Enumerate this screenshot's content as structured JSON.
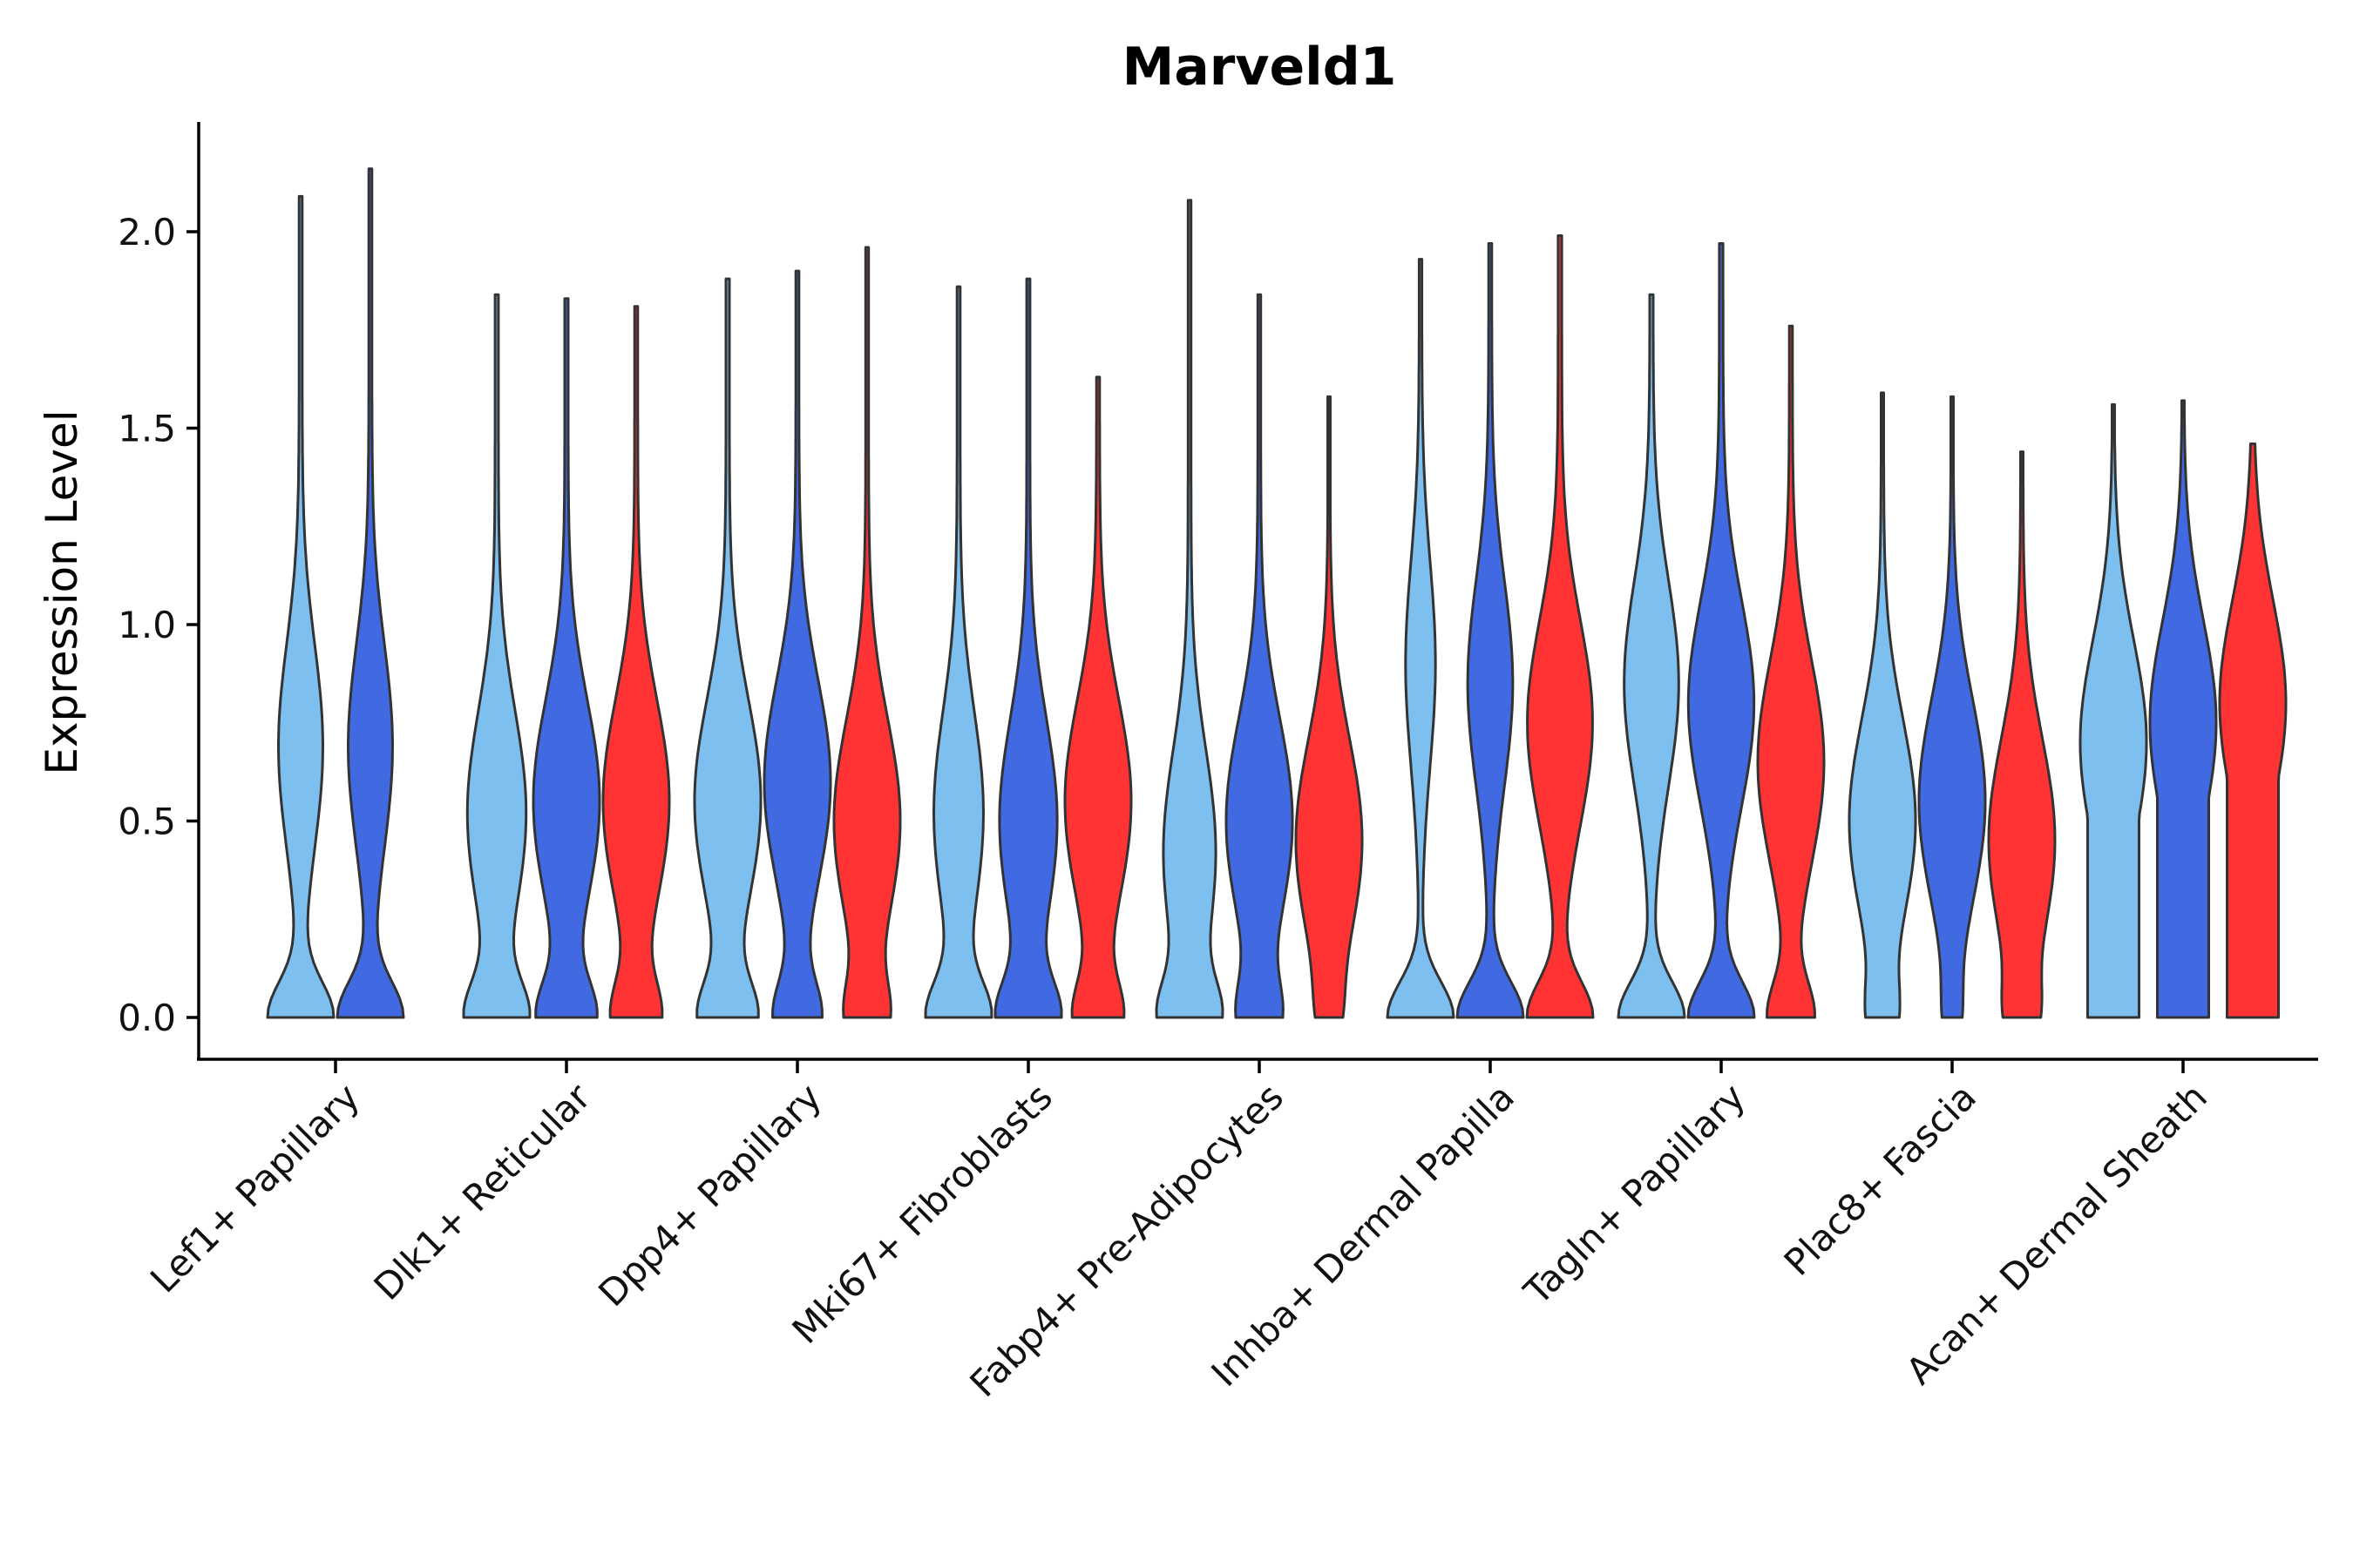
{
  "chart_data": {
    "type": "violin",
    "title": "Marveld1",
    "xlabel": "",
    "ylabel": "Expression Level",
    "ylim": [
      -0.1,
      2.27
    ],
    "yticks": [
      "0.0",
      "0.5",
      "1.0",
      "1.5",
      "2.0"
    ],
    "ytick_values": [
      0,
      0.5,
      1.0,
      1.5,
      2.0
    ],
    "categories": [
      "Lef1+ Papillary",
      "Dlk1+ Reticular",
      "Dpp4+ Papillary",
      "Mki67+ Fibroblasts",
      "Fabp4+ Pre-Adipocytes",
      "Inhba+ Dermal Papilla",
      "Tagln+ Papillary",
      "Plac8+ Fascia",
      "Acan+ Dermal Sheath"
    ],
    "colors": {
      "group_a": "#7DBFEE",
      "group_b": "#4169E1",
      "group_c": "#FF3333"
    },
    "series": [
      {
        "name": "group_a",
        "color": "#7DBFEE",
        "max": [
          2.09,
          1.84,
          1.88,
          1.86,
          2.08,
          1.93,
          1.84,
          1.59,
          1.56
        ],
        "peak": [
          0.69,
          0.52,
          0.55,
          0.52,
          0.42,
          0.9,
          0.85,
          0.5,
          0.7
        ],
        "zero_frac": [
          0.6,
          0.5,
          0.45,
          0.55,
          0.5,
          0.7,
          0.55,
          0.25,
          0.0
        ]
      },
      {
        "name": "group_b",
        "color": "#4169E1",
        "max": [
          2.16,
          1.83,
          1.9,
          1.88,
          1.84,
          1.97,
          1.97,
          1.58,
          1.57
        ],
        "peak": [
          0.69,
          0.55,
          0.6,
          0.5,
          0.5,
          0.85,
          0.8,
          0.55,
          0.75
        ],
        "zero_frac": [
          0.6,
          0.45,
          0.4,
          0.5,
          0.35,
          0.6,
          0.5,
          0.15,
          0.0
        ]
      },
      {
        "name": "group_c",
        "color": "#FF3333",
        "max": [
          null,
          1.81,
          1.96,
          1.63,
          1.58,
          1.99,
          1.76,
          1.44,
          1.46
        ],
        "peak": [
          null,
          0.55,
          0.5,
          0.55,
          0.45,
          0.75,
          0.65,
          0.45,
          0.8
        ],
        "zero_frac": [
          null,
          0.4,
          0.35,
          0.4,
          0.15,
          0.5,
          0.4,
          0.25,
          0.0
        ]
      }
    ]
  }
}
